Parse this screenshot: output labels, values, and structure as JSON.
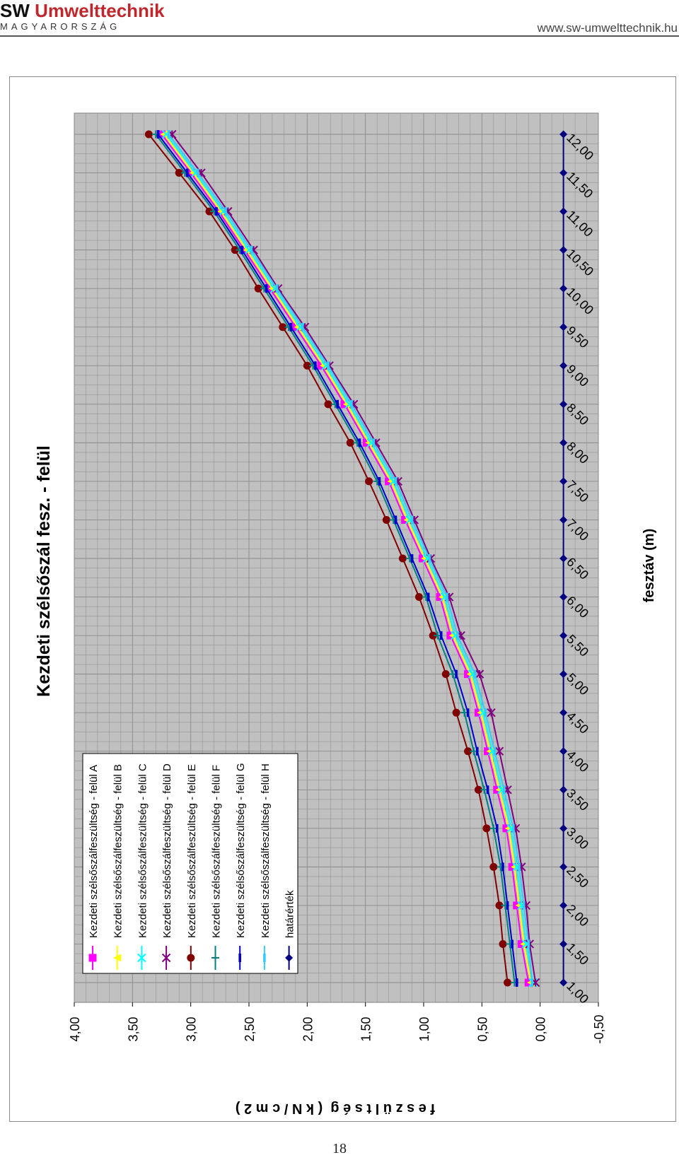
{
  "header": {
    "brand_sw": "SW",
    "brand_name": "Umwelttechnik",
    "brand_sub": "MAGYARORSZÁG",
    "url": "www.sw-umwelttechnik.hu"
  },
  "page_number": "18",
  "chart_data": {
    "type": "line",
    "orientation": "rotated 90° clockwise (x axis runs top-to-bottom, y axis left-to-right)",
    "title": "Kezdeti szélsőszál fesz. - felül",
    "xlabel": "fesztáv (m)",
    "ylabel": "feszültség (kN/cm2)",
    "ylabel_display": "f e s z ü l t s é g  ( k N / c m 2 )",
    "x": [
      1.0,
      1.5,
      2.0,
      2.5,
      3.0,
      3.5,
      4.0,
      4.5,
      5.0,
      5.5,
      6.0,
      6.5,
      7.0,
      7.5,
      8.0,
      8.5,
      9.0,
      9.5,
      10.0,
      10.5,
      11.0,
      11.5,
      12.0
    ],
    "xtick_labels": [
      "1,00",
      "1,50",
      "2,00",
      "2,50",
      "3,00",
      "3,50",
      "4,00",
      "4,50",
      "5,00",
      "5,50",
      "6,00",
      "6,50",
      "7,00",
      "7,50",
      "8,00",
      "8,50",
      "9,00",
      "9,50",
      "10,00",
      "10,50",
      "11,00",
      "11,50",
      "12,00"
    ],
    "ytick_labels": [
      "-0,50",
      "0,00",
      "0,50",
      "1,00",
      "1,50",
      "2,00",
      "2,50",
      "3,00",
      "3,50",
      "4,00"
    ],
    "ylim": [
      -0.5,
      4.0
    ],
    "grid": true,
    "plot_background": "#c0c0c0",
    "legend_position": "inside, near the y = 4,00 side of the plot",
    "series": [
      {
        "name": "Kezdeti szélsőszálfeszültség - felül A",
        "color": "#ff00ff",
        "marker": "square",
        "values": [
          0.1,
          0.16,
          0.2,
          0.24,
          0.29,
          0.37,
          0.45,
          0.53,
          0.62,
          0.77,
          0.86,
          1.01,
          1.16,
          1.3,
          1.49,
          1.68,
          1.88,
          2.1,
          2.32,
          2.54,
          2.76,
          3.0,
          3.25
        ]
      },
      {
        "name": "Kezdeti szélsőszálfeszültség - felül B",
        "color": "#ffff00",
        "marker": "triangle",
        "values": [
          0.08,
          0.14,
          0.18,
          0.22,
          0.27,
          0.35,
          0.43,
          0.51,
          0.6,
          0.75,
          0.84,
          0.99,
          1.14,
          1.28,
          1.47,
          1.66,
          1.86,
          2.08,
          2.3,
          2.52,
          2.74,
          2.98,
          3.23
        ]
      },
      {
        "name": "Kezdeti szélsőszálfeszültség - felül C",
        "color": "#00ffff",
        "marker": "x",
        "values": [
          0.06,
          0.12,
          0.16,
          0.2,
          0.25,
          0.33,
          0.41,
          0.49,
          0.58,
          0.73,
          0.82,
          0.97,
          1.12,
          1.26,
          1.45,
          1.64,
          1.84,
          2.06,
          2.28,
          2.5,
          2.72,
          2.96,
          3.21
        ]
      },
      {
        "name": "Kezdeti szélsőszálfeszültség - felül D",
        "color": "#800080",
        "marker": "star",
        "values": [
          0.04,
          0.09,
          0.12,
          0.16,
          0.21,
          0.28,
          0.35,
          0.42,
          0.52,
          0.68,
          0.78,
          0.94,
          1.08,
          1.22,
          1.41,
          1.6,
          1.81,
          2.02,
          2.25,
          2.46,
          2.68,
          2.91,
          3.16
        ]
      },
      {
        "name": "Kezdeti szélsőszálfeszültség - felül E",
        "color": "#800000",
        "marker": "circle",
        "values": [
          0.28,
          0.32,
          0.35,
          0.4,
          0.46,
          0.53,
          0.62,
          0.72,
          0.81,
          0.92,
          1.04,
          1.18,
          1.32,
          1.47,
          1.63,
          1.82,
          2.0,
          2.21,
          2.42,
          2.62,
          2.84,
          3.1,
          3.36
        ]
      },
      {
        "name": "Kezdeti szélsőszálfeszültség - felül F",
        "color": "#008080",
        "marker": "plus",
        "values": [
          0.22,
          0.26,
          0.3,
          0.34,
          0.4,
          0.48,
          0.57,
          0.65,
          0.75,
          0.88,
          0.98,
          1.12,
          1.26,
          1.4,
          1.57,
          1.76,
          1.95,
          2.16,
          2.37,
          2.58,
          2.8,
          3.05,
          3.3
        ]
      },
      {
        "name": "Kezdeti szélsőszálfeszültség - felül G",
        "color": "#0000cd",
        "marker": "bar",
        "values": [
          0.2,
          0.24,
          0.28,
          0.32,
          0.37,
          0.45,
          0.54,
          0.62,
          0.72,
          0.85,
          0.96,
          1.1,
          1.24,
          1.38,
          1.55,
          1.74,
          1.93,
          2.14,
          2.35,
          2.56,
          2.78,
          3.03,
          3.28
        ]
      },
      {
        "name": "Kezdeti szélsőszálfeszültség - felül H",
        "color": "#33ccff",
        "marker": "bar",
        "values": [
          0.07,
          0.1,
          0.14,
          0.18,
          0.23,
          0.31,
          0.39,
          0.47,
          0.56,
          0.71,
          0.8,
          0.95,
          1.1,
          1.24,
          1.43,
          1.62,
          1.82,
          2.04,
          2.26,
          2.48,
          2.7,
          2.94,
          3.19
        ]
      },
      {
        "name": "határérték",
        "color": "#000080",
        "marker": "diamond",
        "values": [
          -0.2,
          -0.2,
          -0.2,
          -0.2,
          -0.2,
          -0.2,
          -0.2,
          -0.2,
          -0.2,
          -0.2,
          -0.2,
          -0.2,
          -0.2,
          -0.2,
          -0.2,
          -0.2,
          -0.2,
          -0.2,
          -0.2,
          -0.2,
          -0.2,
          -0.2,
          -0.2
        ]
      }
    ]
  }
}
